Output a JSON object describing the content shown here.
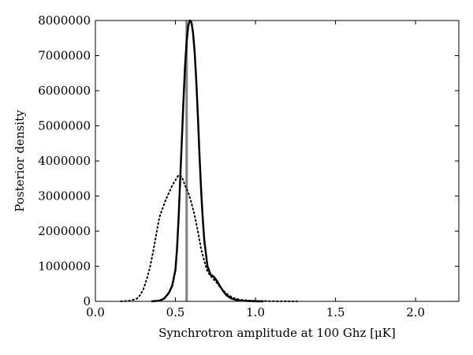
{
  "chart_data": {
    "type": "line",
    "xlabel": "Synchrotron amplitude at 100 Ghz [μK]",
    "ylabel": "Posterior density",
    "xlim": [
      0.0,
      2.27
    ],
    "ylim": [
      0,
      8000000
    ],
    "xticks": [
      0.0,
      0.5,
      1.0,
      1.5,
      2.0
    ],
    "xtick_labels": [
      "0.0",
      "0.5",
      "1.0",
      "1.5",
      "2.0"
    ],
    "yticks": [
      0,
      1000000,
      2000000,
      3000000,
      4000000,
      5000000,
      6000000,
      7000000,
      8000000
    ],
    "ytick_labels": [
      "0",
      "1000000",
      "2000000",
      "3000000",
      "4000000",
      "5000000",
      "6000000",
      "7000000",
      "8000000"
    ],
    "grid": false,
    "vline": {
      "x": 0.57,
      "color": "#808080"
    },
    "series": [
      {
        "style": "solid",
        "color": "#000000",
        "x": [
          0.35,
          0.4,
          0.43,
          0.46,
          0.48,
          0.5,
          0.51,
          0.52,
          0.53,
          0.54,
          0.55,
          0.56,
          0.57,
          0.58,
          0.59,
          0.6,
          0.61,
          0.62,
          0.63,
          0.64,
          0.65,
          0.66,
          0.67,
          0.68,
          0.7,
          0.72,
          0.74,
          0.76,
          0.78,
          0.8,
          0.82,
          0.85,
          0.88,
          0.9,
          0.95,
          1.0,
          1.05
        ],
        "y": [
          0,
          20000,
          80000,
          250000,
          450000,
          900000,
          1500000,
          2400000,
          3500000,
          4600000,
          5700000,
          6700000,
          7400000,
          7850000,
          8000000,
          7950000,
          7650000,
          7100000,
          6300000,
          5300000,
          4200000,
          3200000,
          2400000,
          1750000,
          1000000,
          760000,
          700000,
          580000,
          420000,
          280000,
          170000,
          80000,
          40000,
          25000,
          10000,
          4000,
          0
        ]
      },
      {
        "style": "dotted",
        "color": "#000000",
        "x": [
          0.16,
          0.22,
          0.26,
          0.28,
          0.3,
          0.32,
          0.34,
          0.36,
          0.38,
          0.4,
          0.42,
          0.44,
          0.46,
          0.48,
          0.5,
          0.52,
          0.54,
          0.56,
          0.58,
          0.6,
          0.62,
          0.64,
          0.66,
          0.68,
          0.7,
          0.72,
          0.74,
          0.76,
          0.78,
          0.8,
          0.83,
          0.86,
          0.9,
          0.95,
          1.0,
          1.1,
          1.2,
          1.26
        ],
        "y": [
          0,
          20000,
          80000,
          180000,
          350000,
          620000,
          950000,
          1400000,
          1900000,
          2400000,
          2650000,
          2900000,
          3100000,
          3300000,
          3450000,
          3600000,
          3550000,
          3300000,
          3100000,
          2800000,
          2450000,
          2000000,
          1500000,
          1150000,
          850000,
          720000,
          620000,
          520000,
          400000,
          300000,
          180000,
          100000,
          50000,
          25000,
          12000,
          5000,
          1500,
          0
        ]
      }
    ]
  }
}
